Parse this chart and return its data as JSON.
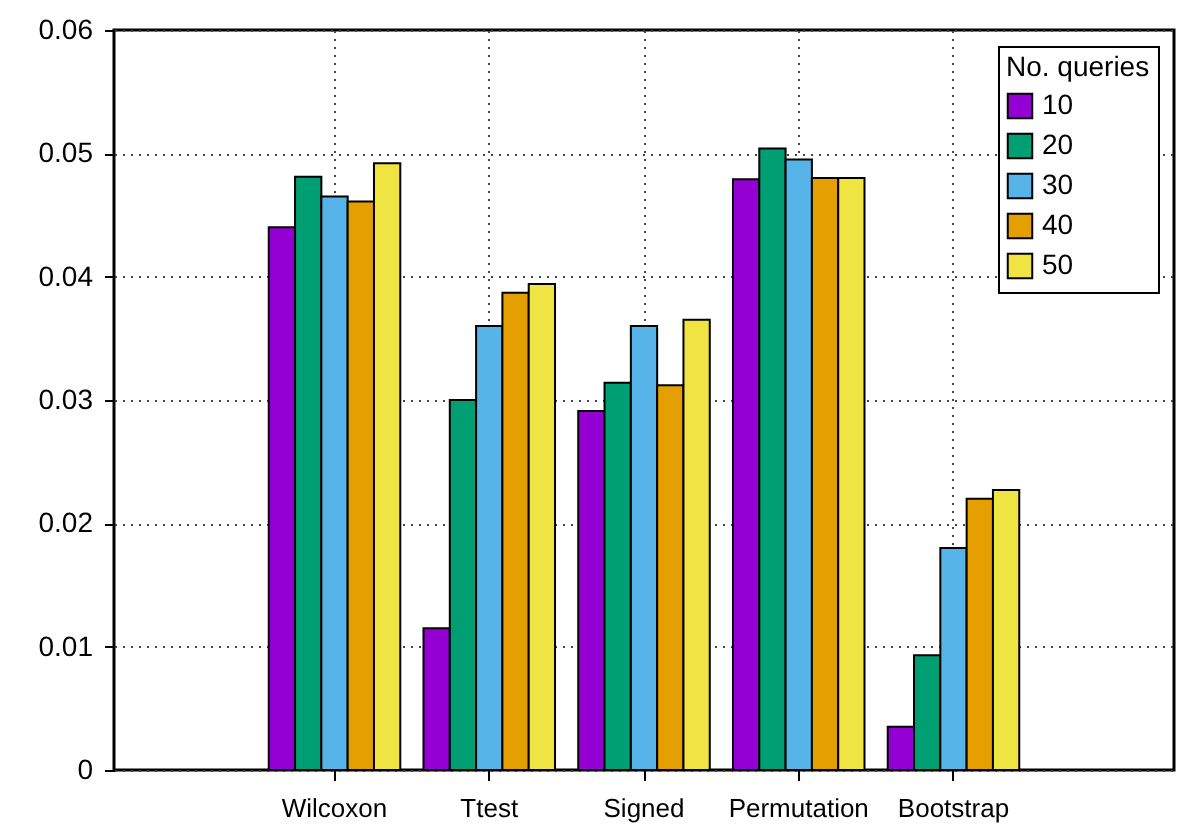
{
  "chart_data": {
    "type": "bar",
    "categories": [
      "Wilcoxon",
      "Ttest",
      "Signed",
      "Permutation",
      "Bootstrap"
    ],
    "legend_title": "No. queries",
    "series": [
      {
        "name": "10",
        "color": "#9400d3",
        "values": [
          0.044,
          0.0115,
          0.0291,
          0.0479,
          0.0035
        ]
      },
      {
        "name": "20",
        "color": "#009e73",
        "values": [
          0.0481,
          0.03,
          0.0314,
          0.0504,
          0.0093
        ]
      },
      {
        "name": "30",
        "color": "#56b4e9",
        "values": [
          0.0465,
          0.036,
          0.036,
          0.0495,
          0.018
        ]
      },
      {
        "name": "40",
        "color": "#e69f00",
        "values": [
          0.0461,
          0.0387,
          0.0312,
          0.048,
          0.022
        ]
      },
      {
        "name": "50",
        "color": "#f0e442",
        "values": [
          0.0492,
          0.0394,
          0.0365,
          0.048,
          0.0227
        ]
      }
    ],
    "ylim": [
      0,
      0.06
    ],
    "yticks": [
      0,
      0.01,
      0.02,
      0.03,
      0.04,
      0.05,
      0.06
    ],
    "grid": true,
    "legend": "top right"
  }
}
